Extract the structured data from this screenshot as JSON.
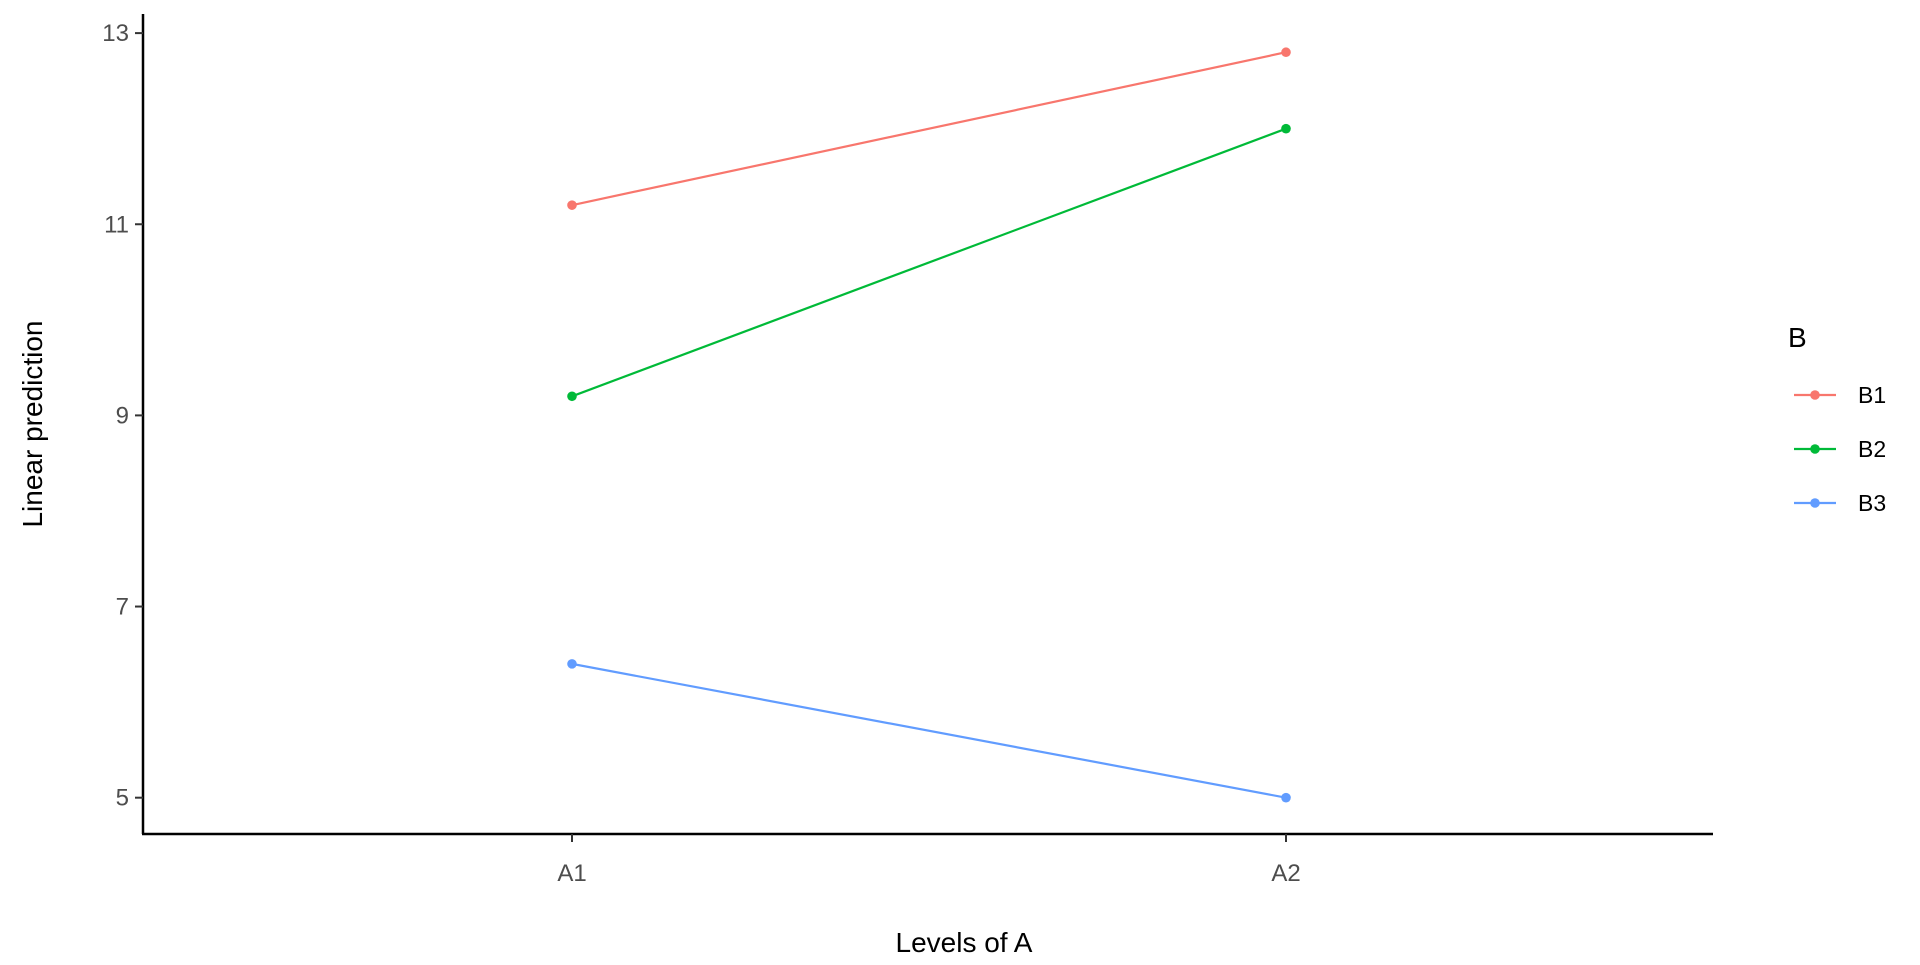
{
  "chart_data": {
    "type": "line",
    "xlabel": "Levels of A",
    "ylabel": "Linear prediction",
    "categories": [
      "A1",
      "A2"
    ],
    "y_ticks": [
      5,
      7,
      9,
      11,
      13
    ],
    "ylim": [
      4.62,
      13.2
    ],
    "grid": false,
    "legend_placement": "right",
    "legend": {
      "title": "B"
    },
    "series": [
      {
        "name": "B1",
        "color": "#F8766D",
        "values": [
          11.2,
          12.8
        ]
      },
      {
        "name": "B2",
        "color": "#00BA38",
        "values": [
          9.2,
          12.0
        ]
      },
      {
        "name": "B3",
        "color": "#619CFF",
        "values": [
          6.4,
          5.0
        ]
      }
    ]
  }
}
